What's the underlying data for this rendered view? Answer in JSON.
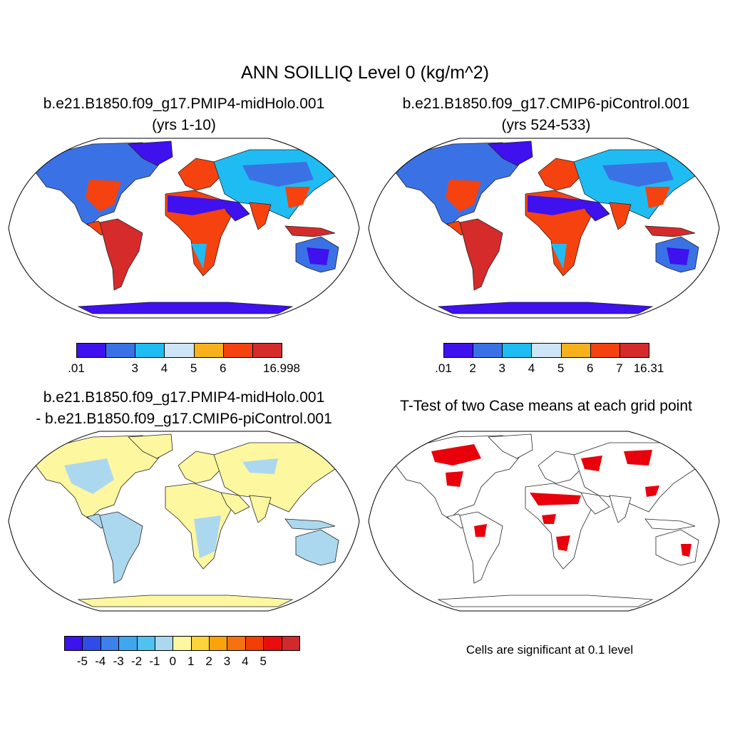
{
  "title": "ANN SOILLIQ Level 0 (kg/m^2)",
  "panels": [
    {
      "title_line1": "b.e21.B1850.f09_g17.PMIP4-midHolo.001",
      "title_line2": "(yrs 1-10)",
      "colorbar": {
        "colors": [
          "#3e11ee",
          "#3a72e6",
          "#1ebcf3",
          "#cde5f6",
          "#f7b11c",
          "#f5420f",
          "#d52b2b"
        ],
        "labels": [
          ".01",
          "3",
          "4",
          "5",
          "6",
          "16.998"
        ],
        "label_boundaries": [
          0,
          2,
          3,
          4,
          5,
          7
        ]
      }
    },
    {
      "title_line1": "b.e21.B1850.f09_g17.CMIP6-piControl.001",
      "title_line2": "(yrs 524-533)",
      "colorbar": {
        "colors": [
          "#3e11ee",
          "#3a72e6",
          "#1ebcf3",
          "#cde5f6",
          "#f7b11c",
          "#f5420f",
          "#d52b2b"
        ],
        "labels": [
          ".01",
          "2",
          "3",
          "4",
          "5",
          "6",
          "7",
          "16.31"
        ],
        "label_boundaries": [
          0,
          1,
          2,
          3,
          4,
          5,
          6,
          7
        ]
      }
    },
    {
      "title_line1": "b.e21.B1850.f09_g17.PMIP4-midHolo.001",
      "title_line2": "- b.e21.B1850.f09_g17.CMIP6-piControl.001",
      "colorbar": {
        "colors": [
          "#3c12ee",
          "#2f4ce9",
          "#3c81ea",
          "#3fa7ef",
          "#4fc2f0",
          "#acd8ef",
          "#fdf7a0",
          "#fdd33b",
          "#fca30c",
          "#f7710e",
          "#f43e06",
          "#ea0d0d",
          "#d2292d"
        ],
        "labels": [
          "-5",
          "-4",
          "-3",
          "-2",
          "-1",
          "0",
          "1",
          "2",
          "3",
          "4",
          "5"
        ],
        "label_boundaries": [
          1,
          2,
          3,
          4,
          5,
          6,
          7,
          8,
          9,
          10,
          11
        ]
      }
    },
    {
      "title_line1": "T-Test of two Case means at each grid point",
      "note": "Cells are significant at 0.1 level",
      "sig_color": "#e8000b"
    }
  ],
  "maps": {
    "projection": "Robinson",
    "panel1_regions": [
      {
        "region": "Sahara",
        "color": "#3e11ee"
      },
      {
        "region": "Arabia",
        "color": "#3e11ee"
      },
      {
        "region": "Australia-interior",
        "color": "#3e11ee"
      },
      {
        "region": "Antarctica",
        "color": "#3e11ee"
      },
      {
        "region": "Amazon",
        "color": "#d52b2b"
      },
      {
        "region": "Congo",
        "color": "#f5420f"
      },
      {
        "region": "SE-Asia",
        "color": "#d52b2b"
      },
      {
        "region": "East-US",
        "color": "#f5420f"
      },
      {
        "region": "Siberia",
        "color": "#3a72e6"
      },
      {
        "region": "Canada",
        "color": "#1ebcf3"
      }
    ]
  }
}
